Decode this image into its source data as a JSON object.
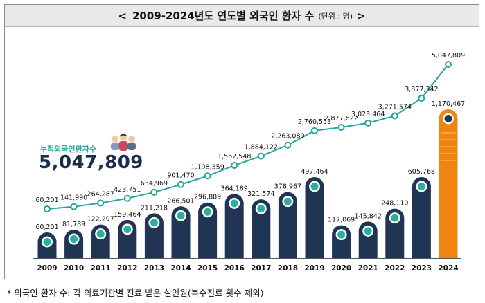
{
  "title": {
    "left_mark": "<",
    "text": "2009-2024년도 연도별 외국인 환자 수",
    "unit": "(단위 : 명)",
    "right_mark": ">"
  },
  "legend": {
    "label": "누적외국인환자수",
    "total": "5,047,809",
    "icon": "people-group-icon"
  },
  "footnote": "* 외국인 환자 수: 각 의료기관별 진료 받은 실인원(복수진료 횟수 제외)",
  "colors": {
    "bar": "#1f3553",
    "bar_highlight": "#f0840f",
    "line": "#26a69a",
    "dot_fill": "#2ab0a2"
  },
  "chart_data": {
    "type": "bar",
    "categories": [
      "2009",
      "2010",
      "2011",
      "2012",
      "2013",
      "2014",
      "2015",
      "2016",
      "2017",
      "2018",
      "2019",
      "2020",
      "2021",
      "2022",
      "2023",
      "2024"
    ],
    "series": [
      {
        "type": "bar",
        "values": [
          60201,
          81789,
          122297,
          159464,
          211218,
          266501,
          296889,
          364189,
          321574,
          378967,
          497464,
          117069,
          145842,
          248110,
          605768,
          1170467
        ],
        "labels": [
          "60,201",
          "81,789",
          "122,297",
          "159,464",
          "211,218",
          "266,501",
          "296,889",
          "364,189",
          "321,574",
          "378,967",
          "497,464",
          "117,069",
          "145,842",
          "248,110",
          "605,768",
          "1,170,467"
        ]
      },
      {
        "name": "누적외국인환자수",
        "type": "line",
        "values": [
          60201,
          141990,
          264287,
          423751,
          634969,
          901470,
          1198359,
          1562548,
          1884122,
          2263089,
          2760553,
          2877622,
          3023464,
          3271574,
          3877342,
          5047809
        ],
        "labels": [
          "60,201",
          "141,990",
          "264,287",
          "423,751",
          "634,969",
          "901,470",
          "1,198,359",
          "1,562,548",
          "1,884,122",
          "2,263,089",
          "2,760,553",
          "2,877,622",
          "3,023,464",
          "3,271,574",
          "3,877,342",
          "5,047,809"
        ]
      }
    ],
    "highlight_category": "2024",
    "grid": false
  }
}
